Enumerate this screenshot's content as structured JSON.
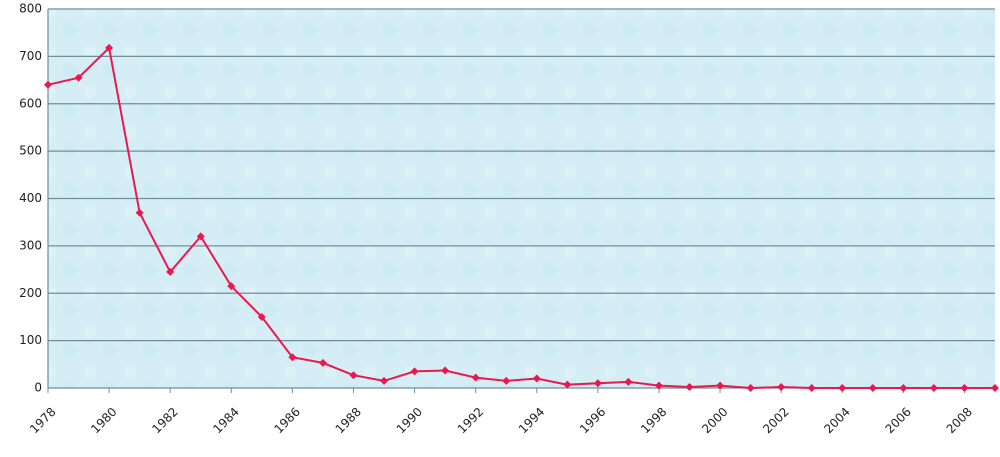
{
  "chart_data": {
    "type": "line",
    "x": [
      1978,
      1979,
      1980,
      1981,
      1982,
      1983,
      1984,
      1985,
      1986,
      1987,
      1988,
      1989,
      1990,
      1991,
      1992,
      1993,
      1994,
      1995,
      1996,
      1997,
      1998,
      1999,
      2000,
      2001,
      2002,
      2003,
      2004,
      2005,
      2006,
      2007,
      2008,
      2009
    ],
    "series": [
      {
        "color": "#e8194d",
        "values": [
          640,
          655,
          718,
          370,
          245,
          320,
          215,
          150,
          65,
          53,
          27,
          15,
          35,
          37,
          22,
          15,
          20,
          7,
          10,
          13,
          5,
          2,
          5,
          0,
          2,
          0,
          0,
          0,
          0,
          0,
          0,
          0
        ]
      }
    ],
    "xlim": [
      1978,
      2009
    ],
    "xticks": [
      1978,
      1980,
      1982,
      1984,
      1986,
      1988,
      1990,
      1992,
      1994,
      1996,
      1998,
      2000,
      2002,
      2004,
      2006,
      2008
    ],
    "ylim": [
      0,
      800
    ],
    "yticks": [
      0,
      100,
      200,
      300,
      400,
      500,
      600,
      700,
      800
    ],
    "grid": true
  }
}
